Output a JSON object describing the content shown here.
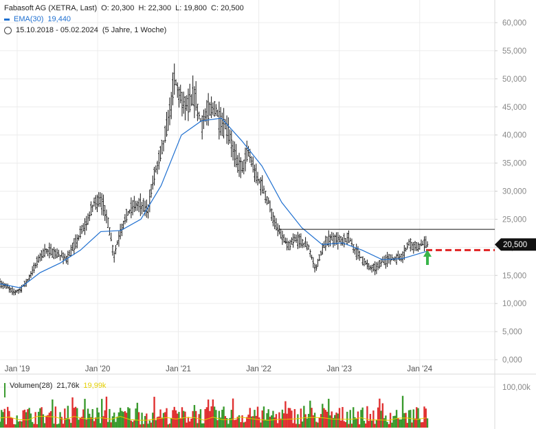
{
  "header": {
    "title": "Fabasoft AG (XETRA, Last)",
    "open": "O: 20,300",
    "high": "H: 22,300",
    "low": "L: 19,800",
    "close": "C: 20,500",
    "ema_label": "EMA(30)",
    "ema_value": "19,440",
    "period": "15.10.2018 - 05.02.2024",
    "period_note": "(5 Jahre, 1 Woche)"
  },
  "volume_header": {
    "label": "Volumen(28)",
    "value1": "21,76k",
    "value2": "19,99k"
  },
  "colors": {
    "price": "#111111",
    "ema": "#1e6fd0",
    "volume_up": "#3a9a2e",
    "volume_down": "#e03030",
    "volume_avg": "#e4cf00",
    "arrow": "#39b54a",
    "target_line": "#e02020",
    "last_badge": "#111111"
  },
  "chart_data": [
    {
      "type": "line",
      "title": "Fabasoft AG (XETRA, Last)",
      "x_ticks": [
        "Jan '19",
        "Jan '20",
        "Jan '21",
        "Jan '22",
        "Jan '23",
        "Jan '24"
      ],
      "y_ticks": [
        "0,000",
        "5,000",
        "10,000",
        "15,000",
        "20,000",
        "25,000",
        "30,000",
        "35,000",
        "40,000",
        "45,000",
        "50,000",
        "55,000",
        "60,000"
      ],
      "ylim": [
        0,
        63000
      ],
      "last_price_label": "20,500",
      "resistance_level": 23200,
      "target_level": 19500,
      "series": [
        {
          "name": "Fabasoft AG (XETRA, Last)",
          "points": [
            [
              "2018-10",
              13500
            ],
            [
              "2018-11",
              13000
            ],
            [
              "2018-12",
              12000
            ],
            [
              "2019-01",
              12500
            ],
            [
              "2019-02",
              14000
            ],
            [
              "2019-03",
              16000
            ],
            [
              "2019-04",
              18500
            ],
            [
              "2019-05",
              19500
            ],
            [
              "2019-06",
              19000
            ],
            [
              "2019-07",
              18500
            ],
            [
              "2019-08",
              18000
            ],
            [
              "2019-09",
              20000
            ],
            [
              "2019-10",
              22500
            ],
            [
              "2019-11",
              24500
            ],
            [
              "2019-12",
              28000
            ],
            [
              "2020-01",
              28500
            ],
            [
              "2020-02",
              25000
            ],
            [
              "2020-03",
              18500
            ],
            [
              "2020-04",
              23000
            ],
            [
              "2020-05",
              26000
            ],
            [
              "2020-06",
              27500
            ],
            [
              "2020-07",
              27500
            ],
            [
              "2020-08",
              26500
            ],
            [
              "2020-09",
              33000
            ],
            [
              "2020-10",
              37000
            ],
            [
              "2020-11",
              42000
            ],
            [
              "2020-12",
              50000
            ],
            [
              "2021-01",
              46000
            ],
            [
              "2021-02",
              45000
            ],
            [
              "2021-03",
              47000
            ],
            [
              "2021-04",
              42000
            ],
            [
              "2021-05",
              44000
            ],
            [
              "2021-06",
              45000
            ],
            [
              "2021-07",
              42000
            ],
            [
              "2021-08",
              41000
            ],
            [
              "2021-09",
              36000
            ],
            [
              "2021-10",
              34000
            ],
            [
              "2021-11",
              37000
            ],
            [
              "2021-12",
              33000
            ],
            [
              "2022-01",
              31000
            ],
            [
              "2022-02",
              28000
            ],
            [
              "2022-03",
              24000
            ],
            [
              "2022-04",
              22000
            ],
            [
              "2022-05",
              20000
            ],
            [
              "2022-06",
              21500
            ],
            [
              "2022-07",
              21000
            ],
            [
              "2022-08",
              20000
            ],
            [
              "2022-09",
              16000
            ],
            [
              "2022-10",
              19500
            ],
            [
              "2022-11",
              21500
            ],
            [
              "2022-12",
              21500
            ],
            [
              "2023-01",
              21000
            ],
            [
              "2023-02",
              21500
            ],
            [
              "2023-03",
              19500
            ],
            [
              "2023-04",
              18000
            ],
            [
              "2023-05",
              16500
            ],
            [
              "2023-06",
              16200
            ],
            [
              "2023-07",
              17500
            ],
            [
              "2023-08",
              18000
            ],
            [
              "2023-09",
              18000
            ],
            [
              "2023-10",
              18500
            ],
            [
              "2023-11",
              21000
            ],
            [
              "2023-12",
              20000
            ],
            [
              "2024-01",
              20500
            ],
            [
              "2024-02",
              20500
            ]
          ]
        },
        {
          "name": "EMA(30)",
          "points": [
            [
              "2018-10",
              13500
            ],
            [
              "2019-01",
              12800
            ],
            [
              "2019-04",
              15500
            ],
            [
              "2019-07",
              17200
            ],
            [
              "2019-10",
              19500
            ],
            [
              "2020-01",
              22800
            ],
            [
              "2020-04",
              23000
            ],
            [
              "2020-07",
              25000
            ],
            [
              "2020-10",
              31000
            ],
            [
              "2021-01",
              40000
            ],
            [
              "2021-04",
              42500
            ],
            [
              "2021-07",
              43000
            ],
            [
              "2021-10",
              39000
            ],
            [
              "2022-01",
              34500
            ],
            [
              "2022-04",
              28000
            ],
            [
              "2022-07",
              23500
            ],
            [
              "2022-10",
              20500
            ],
            [
              "2023-01",
              20800
            ],
            [
              "2023-04",
              19500
            ],
            [
              "2023-07",
              17800
            ],
            [
              "2023-10",
              18000
            ],
            [
              "2024-02",
              19440
            ]
          ]
        }
      ]
    },
    {
      "type": "bar",
      "title": "Volumen(28)",
      "y_ticks": [
        "100,00k"
      ],
      "ylim": [
        0,
        110000
      ],
      "avg_series_names": [
        "21,76k",
        "19,99k"
      ]
    }
  ]
}
